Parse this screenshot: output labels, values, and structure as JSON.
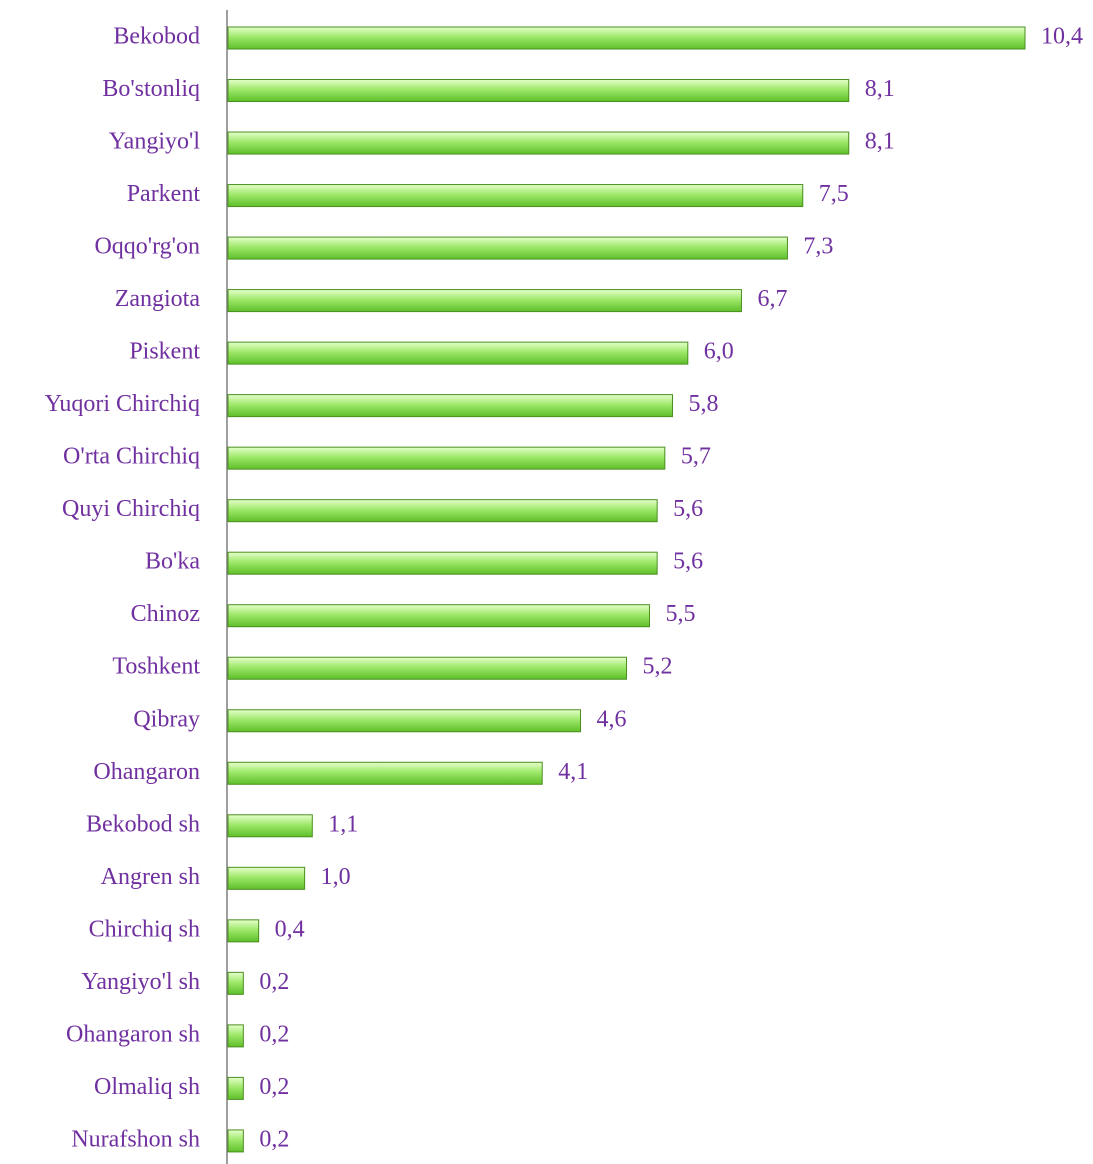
{
  "chart_data": {
    "type": "bar",
    "orientation": "horizontal",
    "categories": [
      "Bekobod",
      "Bo'stonliq",
      "Yangiyo'l",
      "Parkent",
      "Oqqo'rg'on",
      "Zangiota",
      "Piskent",
      "Yuqori Chirchiq",
      "O'rta Chirchiq",
      "Quyi Chirchiq",
      "Bo'ka",
      "Chinoz",
      "Toshkent",
      "Qibray",
      "Ohangaron",
      "Bekobod sh",
      "Angren sh",
      "Chirchiq sh",
      "Yangiyo'l sh",
      "Ohangaron sh",
      "Olmaliq sh",
      "Nurafshon sh"
    ],
    "values": [
      10.4,
      8.1,
      8.1,
      7.5,
      7.3,
      6.7,
      6.0,
      5.8,
      5.7,
      5.6,
      5.6,
      5.5,
      5.2,
      4.6,
      4.1,
      1.1,
      1.0,
      0.4,
      0.2,
      0.2,
      0.2,
      0.2
    ],
    "value_labels": [
      "10,4",
      "8,1",
      "8,1",
      "7,5",
      "7,3",
      "6,7",
      "6,0",
      "5,8",
      "5,7",
      "5,6",
      "5,6",
      "5,5",
      "5,2",
      "4,6",
      "4,1",
      "1,1",
      "1,0",
      "0,4",
      "0,2",
      "0,2",
      "0,2",
      "0,2"
    ],
    "color": "#92e05a"
  }
}
